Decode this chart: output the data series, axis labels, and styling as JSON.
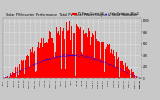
{
  "title": "Solar PV/Inverter Performance  Total PV Panel Power Output & Solar Radiation",
  "bg_color": "#c8c8c8",
  "plot_bg_color": "#c8c8c8",
  "grid_color": "#ffffff",
  "bar_color": "#ff0000",
  "line_color": "#0000ff",
  "n_points": 365,
  "y_max": 1050,
  "y_ticks": [
    0,
    200,
    400,
    600,
    800,
    1000
  ],
  "legend_labels": [
    "PV Power Output (W)",
    "Solar Radiation (W/m2)"
  ],
  "legend_colors": [
    "#ff0000",
    "#0000ff"
  ],
  "seed": 12345
}
